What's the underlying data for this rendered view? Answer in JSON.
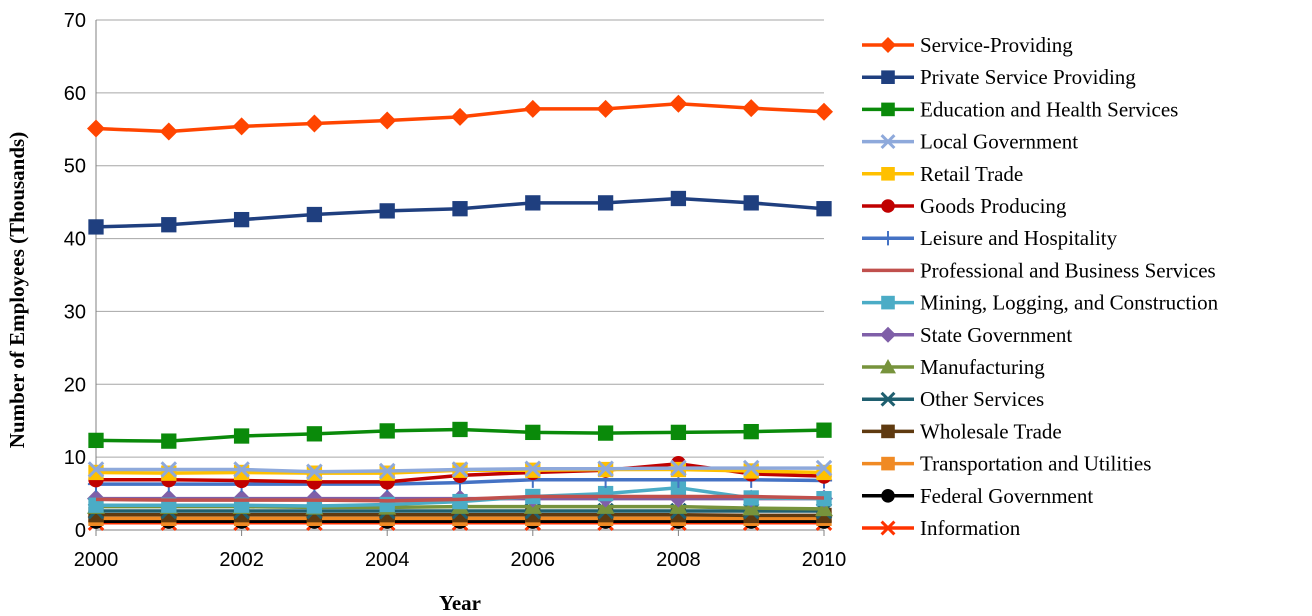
{
  "chart_data": {
    "type": "line",
    "title": "",
    "xlabel": "Year",
    "ylabel": "Number of Employees (Thousands)",
    "xlim": [
      2000,
      2010
    ],
    "ylim": [
      0,
      70
    ],
    "x_ticks": [
      "2000",
      "2002",
      "2004",
      "2006",
      "2008",
      "2010"
    ],
    "y_ticks": [
      "0",
      "10",
      "20",
      "30",
      "40",
      "50",
      "60",
      "70"
    ],
    "grid": "horizontal",
    "legend_position": "right",
    "x": [
      2000,
      2001,
      2002,
      2003,
      2004,
      2005,
      2006,
      2007,
      2008,
      2009,
      2010
    ],
    "series": [
      {
        "name": "Service-Providing",
        "color": "#FF4500",
        "marker": "diamond",
        "values": [
          55.1,
          54.7,
          55.4,
          55.8,
          56.2,
          56.7,
          57.8,
          57.8,
          58.5,
          57.9,
          57.4
        ]
      },
      {
        "name": "Private Service Providing",
        "color": "#1F3F7F",
        "marker": "square",
        "values": [
          41.6,
          41.9,
          42.6,
          43.3,
          43.8,
          44.1,
          44.9,
          44.9,
          45.5,
          44.9,
          44.1
        ]
      },
      {
        "name": "Education and Health Services",
        "color": "#0A8A0A",
        "marker": "square",
        "values": [
          12.3,
          12.2,
          12.9,
          13.2,
          13.6,
          13.8,
          13.4,
          13.3,
          13.4,
          13.5,
          13.7
        ]
      },
      {
        "name": "Local Government",
        "color": "#8EA9DB",
        "marker": "x",
        "values": [
          8.3,
          8.3,
          8.3,
          8.0,
          8.1,
          8.3,
          8.4,
          8.4,
          8.5,
          8.5,
          8.5
        ]
      },
      {
        "name": "Retail Trade",
        "color": "#FFC000",
        "marker": "square",
        "values": [
          7.9,
          7.8,
          7.9,
          7.8,
          7.8,
          8.2,
          8.2,
          8.3,
          8.3,
          8.1,
          7.9
        ]
      },
      {
        "name": "Goods Producing",
        "color": "#C00000",
        "marker": "circle",
        "values": [
          6.9,
          6.9,
          6.8,
          6.6,
          6.6,
          7.5,
          7.9,
          8.2,
          9.1,
          7.7,
          7.4
        ]
      },
      {
        "name": "Leisure and Hospitality",
        "color": "#4472C4",
        "marker": "plus",
        "values": [
          6.3,
          6.3,
          6.3,
          6.3,
          6.3,
          6.5,
          6.9,
          6.9,
          6.9,
          6.9,
          6.8
        ]
      },
      {
        "name": "Professional and Business Services",
        "color": "#C0504D",
        "marker": "none",
        "values": [
          4.2,
          4.1,
          4.1,
          4.1,
          4.0,
          4.2,
          4.6,
          4.6,
          4.6,
          4.6,
          4.4
        ]
      },
      {
        "name": "Mining, Logging, and Construction",
        "color": "#4BACC6",
        "marker": "square",
        "values": [
          3.4,
          3.4,
          3.4,
          3.3,
          3.5,
          3.9,
          4.6,
          5.0,
          5.8,
          4.4,
          4.3
        ]
      },
      {
        "name": "State Government",
        "color": "#7F5FA8",
        "marker": "diamond",
        "values": [
          4.3,
          4.3,
          4.3,
          4.3,
          4.3,
          4.3,
          4.3,
          4.3,
          4.3,
          4.3,
          4.3
        ]
      },
      {
        "name": "Manufacturing",
        "color": "#77933C",
        "marker": "triangle",
        "values": [
          3.2,
          3.2,
          3.2,
          3.1,
          3.1,
          3.2,
          3.2,
          3.2,
          3.2,
          3.0,
          2.9
        ]
      },
      {
        "name": "Other Services",
        "color": "#1F5F6F",
        "marker": "x",
        "values": [
          2.6,
          2.6,
          2.6,
          2.6,
          2.6,
          2.6,
          2.6,
          2.6,
          2.6,
          2.6,
          2.6
        ]
      },
      {
        "name": "Wholesale Trade",
        "color": "#5F3A10",
        "marker": "square",
        "values": [
          2.1,
          2.1,
          2.1,
          2.1,
          2.1,
          2.1,
          2.1,
          2.1,
          2.1,
          2.0,
          2.0
        ]
      },
      {
        "name": "Transportation and Utilities",
        "color": "#F08A24",
        "marker": "square",
        "values": [
          1.6,
          1.6,
          1.6,
          1.6,
          1.6,
          1.6,
          1.6,
          1.6,
          1.6,
          1.6,
          1.6
        ]
      },
      {
        "name": "Federal Government",
        "color": "#000000",
        "marker": "circle",
        "values": [
          1.2,
          1.2,
          1.2,
          1.2,
          1.2,
          1.2,
          1.2,
          1.2,
          1.2,
          1.2,
          1.2
        ]
      },
      {
        "name": "Information",
        "color": "#FF3300",
        "marker": "x",
        "values": [
          1.0,
          1.0,
          1.0,
          1.0,
          1.0,
          1.0,
          1.0,
          1.0,
          1.0,
          1.0,
          1.0
        ]
      }
    ]
  }
}
